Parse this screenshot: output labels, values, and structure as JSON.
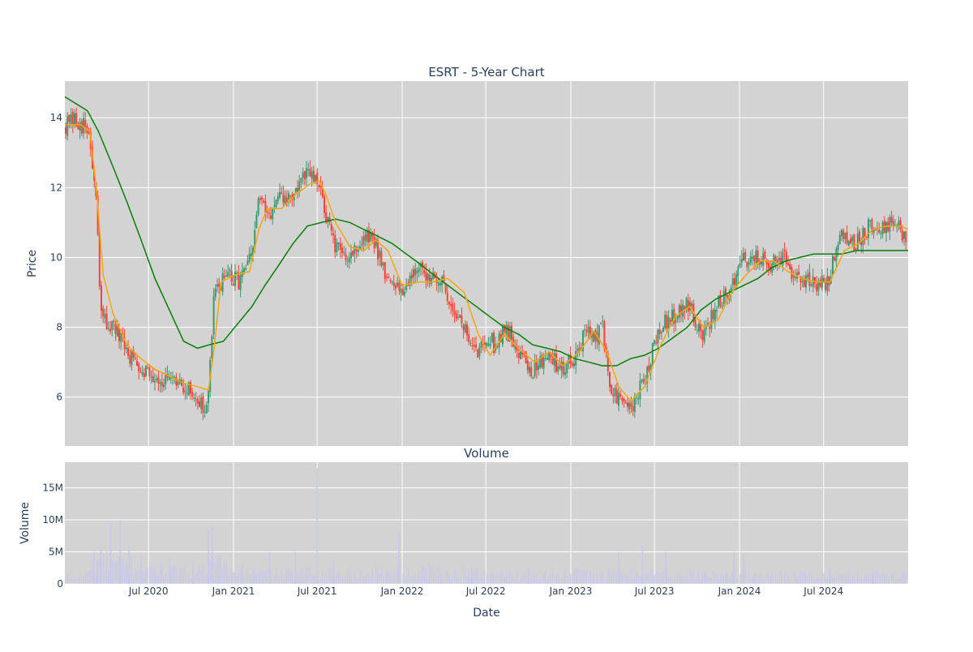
{
  "chart_data": [
    {
      "type": "candlestick",
      "title": "ESRT - 5-Year Chart",
      "xlabel": "",
      "ylabel": "Price",
      "ylim": [
        4.6,
        15.05
      ],
      "y_ticks": [
        6,
        8,
        10,
        12,
        14
      ],
      "x_tick_labels": [
        "Jul 2020",
        "Jan 2021",
        "Jul 2021",
        "Jan 2022",
        "Jul 2022",
        "Jan 2023",
        "Jul 2023",
        "Jan 2024",
        "Jul 2024"
      ],
      "grid": true,
      "legend": "none",
      "colors": {
        "increasing": "#3d9970",
        "decreasing": "#ff4136",
        "ma_short": "#ffa500",
        "ma_long": "#008000",
        "plot_bg": "#d3d3d3"
      },
      "close_series": {
        "x": [
          "2020-01-02",
          "2020-02-03",
          "2020-02-24",
          "2020-03-10",
          "2020-03-20",
          "2020-04-15",
          "2020-05-20",
          "2020-06-15",
          "2020-07-15",
          "2020-08-15",
          "2020-09-15",
          "2020-10-15",
          "2020-11-05",
          "2020-11-10",
          "2020-11-20",
          "2020-12-10",
          "2021-01-10",
          "2021-02-10",
          "2021-02-25",
          "2021-03-10",
          "2021-04-10",
          "2021-05-10",
          "2021-06-10",
          "2021-06-25",
          "2021-07-10",
          "2021-07-25",
          "2021-08-10",
          "2021-09-10",
          "2021-10-10",
          "2021-10-28",
          "2021-11-15",
          "2021-12-10",
          "2022-01-10",
          "2022-02-01",
          "2022-02-15",
          "2022-03-10",
          "2022-04-10",
          "2022-05-10",
          "2022-06-10",
          "2022-07-01",
          "2022-07-20",
          "2022-08-10",
          "2022-09-10",
          "2022-10-10",
          "2022-11-10",
          "2022-12-10",
          "2023-01-10",
          "2023-02-01",
          "2023-02-20",
          "2023-03-10",
          "2023-03-25",
          "2023-04-10",
          "2023-04-25",
          "2023-05-10",
          "2023-06-10",
          "2023-07-10",
          "2023-08-10",
          "2023-09-10",
          "2023-10-10",
          "2023-11-10",
          "2023-12-10",
          "2024-01-10",
          "2024-02-10",
          "2024-03-10",
          "2024-04-10",
          "2024-05-10",
          "2024-06-10",
          "2024-07-10",
          "2024-08-10",
          "2024-09-10",
          "2024-10-10",
          "2024-11-10",
          "2024-12-10",
          "2024-12-31"
        ],
        "close": [
          13.8,
          13.9,
          13.5,
          11.5,
          8.3,
          8.0,
          7.2,
          6.9,
          6.6,
          6.4,
          6.3,
          6.0,
          5.5,
          6.8,
          8.8,
          9.5,
          9.3,
          10.0,
          11.8,
          11.2,
          11.6,
          11.8,
          12.4,
          12.2,
          11.8,
          11.0,
          10.2,
          10.1,
          10.5,
          10.6,
          10.0,
          9.1,
          9.2,
          9.8,
          9.4,
          9.6,
          8.9,
          8.1,
          7.2,
          7.8,
          7.5,
          8.0,
          7.4,
          6.7,
          7.3,
          6.8,
          7.2,
          7.9,
          7.6,
          8.1,
          6.3,
          6.0,
          5.8,
          5.6,
          6.5,
          8.0,
          8.3,
          8.8,
          7.7,
          8.5,
          9.1,
          9.9,
          10.0,
          9.8,
          9.9,
          9.3,
          9.3,
          9.3,
          10.7,
          10.4,
          11.0,
          10.8,
          11.1,
          10.1
        ]
      },
      "ma_short": {
        "x": [
          "2020-01-02",
          "2020-02-05",
          "2020-02-25",
          "2020-03-10",
          "2020-03-25",
          "2020-04-15",
          "2020-05-15",
          "2020-06-15",
          "2020-07-15",
          "2020-08-15",
          "2020-09-15",
          "2020-10-15",
          "2020-11-08",
          "2020-11-20",
          "2020-12-05",
          "2021-01-05",
          "2021-02-05",
          "2021-02-25",
          "2021-03-15",
          "2021-04-15",
          "2021-05-15",
          "2021-06-15",
          "2021-07-05",
          "2021-07-20",
          "2021-08-10",
          "2021-09-10",
          "2021-10-10",
          "2021-11-05",
          "2021-12-01",
          "2022-01-01",
          "2022-02-10",
          "2022-03-10",
          "2022-04-10",
          "2022-05-15",
          "2022-06-15",
          "2022-07-10",
          "2022-08-10",
          "2022-09-10",
          "2022-10-15",
          "2022-11-15",
          "2022-12-15",
          "2023-01-20",
          "2023-02-20",
          "2023-03-20",
          "2023-04-15",
          "2023-05-10",
          "2023-06-10",
          "2023-07-15",
          "2023-08-15",
          "2023-09-15",
          "2023-10-15",
          "2023-11-15",
          "2023-12-15",
          "2024-01-15",
          "2024-02-15",
          "2024-03-15",
          "2024-04-15",
          "2024-05-15",
          "2024-06-15",
          "2024-07-15",
          "2024-08-15",
          "2024-09-15",
          "2024-10-15",
          "2024-11-15",
          "2024-12-15",
          "2024-12-31"
        ],
        "values": [
          13.8,
          13.8,
          13.6,
          12.0,
          9.5,
          8.4,
          7.5,
          7.1,
          6.8,
          6.6,
          6.4,
          6.3,
          6.2,
          7.4,
          9.3,
          9.5,
          9.6,
          10.8,
          11.4,
          11.4,
          11.8,
          12.1,
          12.2,
          11.8,
          11.0,
          10.3,
          10.2,
          10.5,
          10.2,
          9.2,
          9.3,
          9.3,
          9.4,
          9.0,
          7.8,
          7.2,
          7.8,
          7.4,
          7.0,
          7.3,
          6.9,
          7.3,
          7.9,
          7.3,
          6.3,
          5.9,
          6.3,
          7.5,
          8.3,
          8.6,
          8.0,
          8.2,
          9.0,
          9.5,
          9.9,
          9.9,
          9.6,
          9.4,
          9.3,
          9.3,
          10.2,
          10.4,
          10.8,
          10.9,
          10.9,
          10.8
        ]
      },
      "ma_long": {
        "x": [
          "2020-01-02",
          "2020-02-20",
          "2020-03-15",
          "2020-04-15",
          "2020-05-15",
          "2020-06-15",
          "2020-07-15",
          "2020-08-15",
          "2020-09-15",
          "2020-10-15",
          "2020-11-10",
          "2020-12-10",
          "2021-01-10",
          "2021-02-10",
          "2021-03-10",
          "2021-04-10",
          "2021-05-10",
          "2021-06-10",
          "2021-07-10",
          "2021-08-10",
          "2021-09-10",
          "2021-10-10",
          "2021-11-10",
          "2021-12-10",
          "2022-01-10",
          "2022-02-10",
          "2022-03-10",
          "2022-04-10",
          "2022-05-10",
          "2022-06-10",
          "2022-07-10",
          "2022-08-10",
          "2022-09-10",
          "2022-10-10",
          "2022-11-10",
          "2022-12-10",
          "2023-01-10",
          "2023-02-10",
          "2023-03-10",
          "2023-04-10",
          "2023-05-10",
          "2023-06-10",
          "2023-07-10",
          "2023-08-10",
          "2023-09-10",
          "2023-10-10",
          "2023-11-10",
          "2023-12-10",
          "2024-01-10",
          "2024-02-10",
          "2024-03-10",
          "2024-04-10",
          "2024-05-10",
          "2024-06-10",
          "2024-07-10",
          "2024-08-10",
          "2024-09-10",
          "2024-10-10",
          "2024-11-10",
          "2024-12-10",
          "2024-12-31"
        ],
        "values": [
          14.6,
          14.2,
          13.6,
          12.6,
          11.6,
          10.5,
          9.4,
          8.5,
          7.6,
          7.4,
          7.5,
          7.6,
          8.1,
          8.6,
          9.2,
          9.8,
          10.4,
          10.9,
          11.0,
          11.1,
          11.0,
          10.8,
          10.6,
          10.4,
          10.1,
          9.8,
          9.5,
          9.2,
          8.9,
          8.6,
          8.3,
          8.0,
          7.8,
          7.5,
          7.4,
          7.3,
          7.1,
          7.0,
          6.9,
          6.9,
          7.1,
          7.2,
          7.4,
          7.7,
          8.0,
          8.5,
          8.8,
          9.0,
          9.2,
          9.4,
          9.7,
          9.9,
          10.0,
          10.1,
          10.1,
          10.1,
          10.2,
          10.2,
          10.2,
          10.2,
          10.2
        ]
      }
    },
    {
      "type": "bar",
      "title": "Volume",
      "xlabel": "Date",
      "ylabel": "Volume",
      "ylim": [
        0,
        19000000
      ],
      "y_tick_labels": [
        "0",
        "5M",
        "10M",
        "15M"
      ],
      "x_tick_labels": [
        "Jul 2020",
        "Jan 2021",
        "Jul 2021",
        "Jan 2022",
        "Jul 2022",
        "Jan 2023",
        "Jul 2023",
        "Jan 2024",
        "Jul 2024"
      ],
      "grid": true,
      "colors": {
        "bar": "#c8c8e8",
        "plot_bg": "#d3d3d3"
      },
      "spikes": {
        "x": [
          "2020-03-05",
          "2020-03-12",
          "2020-03-20",
          "2020-04-10",
          "2020-05-01",
          "2020-05-20",
          "2020-06-15",
          "2020-08-15",
          "2020-10-05",
          "2020-11-08",
          "2020-11-16",
          "2020-12-01",
          "2021-01-20",
          "2021-03-20",
          "2021-05-15",
          "2021-07-01",
          "2021-08-05",
          "2021-12-25",
          "2022-03-01",
          "2022-06-01",
          "2022-10-01",
          "2023-01-15",
          "2023-04-15",
          "2023-06-05",
          "2023-07-25",
          "2023-12-20",
          "2024-01-10",
          "2024-07-15",
          "2024-10-15"
        ],
        "values": [
          5000000,
          3500000,
          5500000,
          9500000,
          10000000,
          6000000,
          4500000,
          4000000,
          3500000,
          8500000,
          9000000,
          4500000,
          3000000,
          5000000,
          5000000,
          18000000,
          3500000,
          8000000,
          3000000,
          2800000,
          2600000,
          2500000,
          5000000,
          6000000,
          5000000,
          5000000,
          4500000,
          2800000,
          2500000
        ]
      },
      "baseline": {
        "x": [
          "2020-01-02",
          "2020-02-15",
          "2020-03-01",
          "2020-04-01",
          "2020-05-01",
          "2020-06-15",
          "2020-08-01",
          "2020-09-15",
          "2020-11-01",
          "2020-12-01",
          "2021-01-15",
          "2021-03-01",
          "2021-05-01",
          "2021-07-01",
          "2021-09-01",
          "2021-11-01",
          "2022-01-01",
          "2022-03-01",
          "2022-05-01",
          "2022-07-01",
          "2022-09-01",
          "2022-11-01",
          "2023-01-01",
          "2023-03-01",
          "2023-05-01",
          "2023-07-01",
          "2023-09-01",
          "2023-11-01",
          "2024-01-01",
          "2024-03-01",
          "2024-05-01",
          "2024-07-01",
          "2024-09-01",
          "2024-11-01",
          "2024-12-31"
        ],
        "values": [
          900000,
          1200000,
          2800000,
          3200000,
          2600000,
          2400000,
          2000000,
          1800000,
          2200000,
          2400000,
          1700000,
          1600000,
          1500000,
          1700000,
          1500000,
          1600000,
          1800000,
          1700000,
          1600000,
          1500000,
          1400000,
          1500000,
          1400000,
          1500000,
          1700000,
          1600000,
          1400000,
          1300000,
          1300000,
          1400000,
          1300000,
          1200000,
          1400000,
          1300000,
          1300000
        ]
      }
    }
  ]
}
